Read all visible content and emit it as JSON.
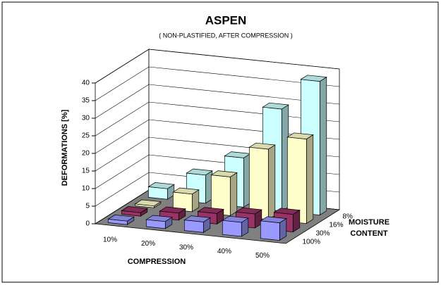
{
  "chart_data": {
    "type": "bar3d",
    "title": "ASPEN",
    "subtitle": "( NON-PLASTIFIED,   AFTER COMPRESSION )",
    "xlabel": "COMPRESSION",
    "ylabel": "DEFORMATIONS [%]",
    "zlabel": "MOISTURE CONTENT",
    "categories": [
      "10%",
      "20%",
      "30%",
      "40%",
      "50%"
    ],
    "series": [
      {
        "name": "8%",
        "color": "#ccffff",
        "values": [
          3,
          8,
          14,
          29,
          38
        ]
      },
      {
        "name": "16%",
        "color": "#ffffcc",
        "values": [
          0.5,
          5,
          11,
          20,
          24
        ]
      },
      {
        "name": "30%",
        "color": "#993366",
        "values": [
          1,
          2,
          3,
          4,
          5
        ]
      },
      {
        "name": "100%",
        "color": "#9999ff",
        "values": [
          1,
          2,
          3,
          4,
          5
        ]
      }
    ],
    "ylim": [
      0,
      40
    ],
    "yticks": [
      0,
      5,
      10,
      15,
      20,
      25,
      30,
      35,
      40
    ],
    "grid": true
  }
}
